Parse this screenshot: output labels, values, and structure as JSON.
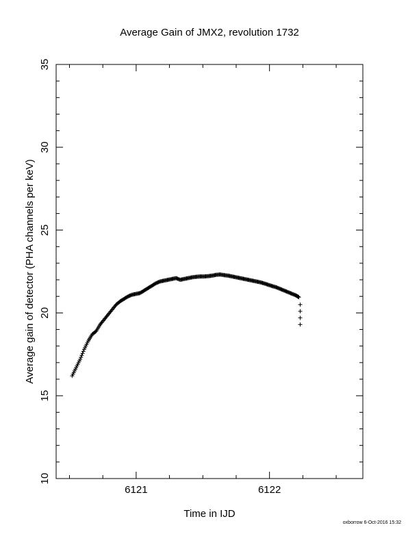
{
  "chart_data": {
    "type": "scatter",
    "title": "Average Gain of JMX2, revolution 1732",
    "xlabel": "Time in IJD",
    "ylabel": "Average gain of detector (PHA channels per keV)",
    "xlim": [
      6120.4,
      6122.7
    ],
    "ylim": [
      10,
      35
    ],
    "x_ticks": [
      "6121",
      "6122"
    ],
    "y_ticks": [
      "10",
      "15",
      "20",
      "25",
      "30",
      "35"
    ],
    "marker": "+",
    "grid": false,
    "series": [
      {
        "points": [
          [
            6120.52,
            16.2
          ],
          [
            6120.55,
            16.7
          ],
          [
            6120.58,
            17.2
          ],
          [
            6120.61,
            17.8
          ],
          [
            6120.64,
            18.3
          ],
          [
            6120.67,
            18.7
          ],
          [
            6120.7,
            18.9
          ],
          [
            6120.73,
            19.3
          ],
          [
            6120.76,
            19.6
          ],
          [
            6120.79,
            19.9
          ],
          [
            6120.82,
            20.2
          ],
          [
            6120.85,
            20.5
          ],
          [
            6120.88,
            20.7
          ],
          [
            6120.91,
            20.85
          ],
          [
            6120.94,
            21.0
          ],
          [
            6120.97,
            21.1
          ],
          [
            6121.0,
            21.15
          ],
          [
            6121.03,
            21.2
          ],
          [
            6121.06,
            21.35
          ],
          [
            6121.09,
            21.5
          ],
          [
            6121.12,
            21.65
          ],
          [
            6121.15,
            21.8
          ],
          [
            6121.18,
            21.9
          ],
          [
            6121.21,
            21.95
          ],
          [
            6121.24,
            22.0
          ],
          [
            6121.27,
            22.05
          ],
          [
            6121.3,
            22.1
          ],
          [
            6121.33,
            22.0
          ],
          [
            6121.36,
            22.05
          ],
          [
            6121.39,
            22.1
          ],
          [
            6121.42,
            22.15
          ],
          [
            6121.45,
            22.18
          ],
          [
            6121.48,
            22.2
          ],
          [
            6121.51,
            22.2
          ],
          [
            6121.54,
            22.22
          ],
          [
            6121.57,
            22.25
          ],
          [
            6121.6,
            22.3
          ],
          [
            6121.63,
            22.32
          ],
          [
            6121.66,
            22.28
          ],
          [
            6121.69,
            22.25
          ],
          [
            6121.72,
            22.2
          ],
          [
            6121.75,
            22.15
          ],
          [
            6121.78,
            22.1
          ],
          [
            6121.81,
            22.05
          ],
          [
            6121.84,
            22.0
          ],
          [
            6121.87,
            21.95
          ],
          [
            6121.9,
            21.9
          ],
          [
            6121.93,
            21.85
          ],
          [
            6121.96,
            21.78
          ],
          [
            6121.99,
            21.7
          ],
          [
            6122.02,
            21.62
          ],
          [
            6122.05,
            21.55
          ],
          [
            6122.08,
            21.45
          ],
          [
            6122.11,
            21.35
          ],
          [
            6122.14,
            21.25
          ],
          [
            6122.17,
            21.15
          ],
          [
            6122.2,
            21.05
          ],
          [
            6122.22,
            20.95
          ]
        ],
        "outliers": [
          [
            6122.23,
            20.5
          ],
          [
            6122.23,
            20.1
          ],
          [
            6122.23,
            19.7
          ],
          [
            6122.23,
            19.3
          ]
        ]
      }
    ]
  },
  "footer": {
    "credit": "oxborrow 6-Oct-2016 15:32"
  }
}
